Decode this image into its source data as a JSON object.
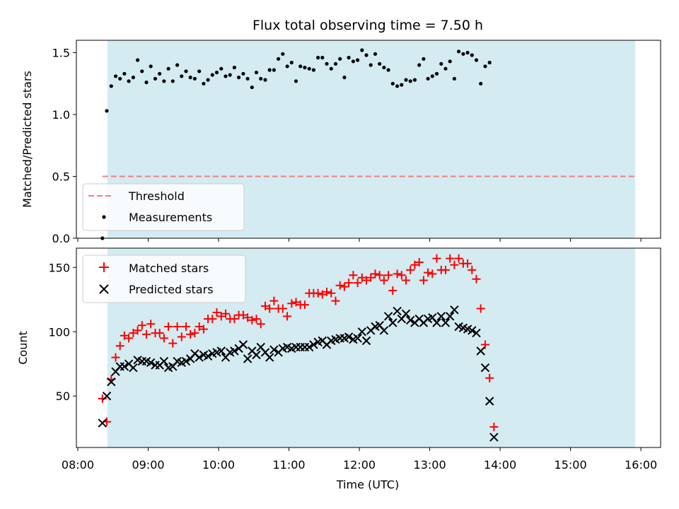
{
  "colors": {
    "background": "#ffffff",
    "shade": "#add8e6",
    "threshold": "#f08080",
    "measurements": "#000000",
    "matched": "#ff0000",
    "predicted": "#000000"
  },
  "chart_data": [
    {
      "type": "scatter",
      "title": "Flux total observing time = 7.50 h",
      "xlabel": "",
      "ylabel": "Matched/Predicted stars",
      "xlim_hours": [
        7.98,
        16.28
      ],
      "ylim": [
        0,
        1.6
      ],
      "yticks": [
        0,
        0.5,
        1.0,
        1.5
      ],
      "ytick_labels": [
        "0.0",
        "0.5",
        "1.0",
        "1.5"
      ],
      "shaded_span_hours": [
        8.42,
        15.92
      ],
      "threshold": {
        "label": "Threshold",
        "value": 0.5,
        "x_range_hours": [
          8.35,
          15.92
        ]
      },
      "legend": {
        "position": "lower-left",
        "entries": [
          "Threshold",
          "Measurements"
        ]
      },
      "series": [
        {
          "name": "Measurements",
          "marker": "dot",
          "x_start_hours": 8.35,
          "x_step_hours": 0.0625,
          "values": [
            0.0,
            1.03,
            1.23,
            1.31,
            1.29,
            1.33,
            1.27,
            1.3,
            1.44,
            1.35,
            1.26,
            1.39,
            1.29,
            1.33,
            1.27,
            1.37,
            1.27,
            1.4,
            1.31,
            1.35,
            1.3,
            1.29,
            1.35,
            1.25,
            1.28,
            1.32,
            1.34,
            1.37,
            1.31,
            1.32,
            1.38,
            1.3,
            1.33,
            1.29,
            1.22,
            1.34,
            1.29,
            1.28,
            1.36,
            1.36,
            1.45,
            1.49,
            1.39,
            1.42,
            1.27,
            1.39,
            1.38,
            1.37,
            1.36,
            1.46,
            1.46,
            1.41,
            1.37,
            1.41,
            1.45,
            1.3,
            1.46,
            1.43,
            1.44,
            1.52,
            1.48,
            1.4,
            1.49,
            1.41,
            1.38,
            1.36,
            1.25,
            1.23,
            1.24,
            1.28,
            1.27,
            1.28,
            1.4,
            1.45,
            1.29,
            1.31,
            1.33,
            1.41,
            1.37,
            1.43,
            1.29,
            1.51,
            1.49,
            1.5,
            1.48,
            1.44,
            1.25,
            1.39,
            1.42
          ]
        }
      ]
    },
    {
      "type": "scatter",
      "title": "",
      "xlabel": "Time (UTC)",
      "ylabel": "Count",
      "xlim_hours": [
        7.98,
        16.28
      ],
      "ylim": [
        10,
        165
      ],
      "yticks": [
        50,
        100,
        150
      ],
      "ytick_labels": [
        "50",
        "100",
        "150"
      ],
      "xticks_hours": [
        8,
        9,
        10,
        11,
        12,
        13,
        14,
        15,
        16
      ],
      "xtick_labels": [
        "08:00",
        "09:00",
        "10:00",
        "11:00",
        "12:00",
        "13:00",
        "14:00",
        "15:00",
        "16:00"
      ],
      "shaded_span_hours": [
        8.42,
        15.92
      ],
      "legend": {
        "position": "top-left",
        "entries": [
          "Matched stars",
          "Predicted stars"
        ]
      },
      "series": [
        {
          "name": "Matched stars",
          "marker": "plus",
          "x_start_hours": 8.35,
          "x_step_hours": 0.0625,
          "values": [
            48,
            30,
            63,
            80,
            89,
            97,
            95,
            99,
            101,
            105,
            98,
            106,
            99,
            99,
            95,
            104,
            91,
            104,
            96,
            104,
            98,
            99,
            104,
            102,
            110,
            110,
            115,
            112,
            114,
            110,
            110,
            113,
            113,
            111,
            109,
            110,
            106,
            120,
            118,
            124,
            118,
            118,
            112,
            122,
            123,
            121,
            121,
            130,
            130,
            130,
            129,
            131,
            130,
            124,
            136,
            135,
            138,
            144,
            138,
            142,
            140,
            142,
            145,
            144,
            140,
            144,
            132,
            145,
            144,
            140,
            148,
            152,
            154,
            140,
            146,
            145,
            157,
            148,
            148,
            157,
            152,
            157,
            153,
            153,
            148,
            141,
            118,
            90,
            64,
            26
          ]
        },
        {
          "name": "Predicted stars",
          "marker": "x",
          "x_start_hours": 8.35,
          "x_step_hours": 0.0625,
          "values": [
            29,
            50,
            61,
            69,
            73,
            73,
            75,
            72,
            78,
            77,
            77,
            76,
            74,
            74,
            77,
            72,
            73,
            77,
            76,
            77,
            79,
            83,
            80,
            82,
            81,
            83,
            84,
            85,
            80,
            84,
            85,
            87,
            90,
            79,
            85,
            82,
            88,
            84,
            80,
            86,
            84,
            87,
            88,
            87,
            88,
            88,
            88,
            88,
            90,
            92,
            93,
            90,
            93,
            94,
            95,
            95,
            96,
            94,
            95,
            100,
            93,
            101,
            104,
            105,
            101,
            112,
            107,
            116,
            110,
            114,
            109,
            107,
            110,
            107,
            110,
            111,
            107,
            112,
            107,
            112,
            117,
            104,
            103,
            102,
            101,
            99,
            85,
            72,
            46,
            18
          ]
        }
      ]
    }
  ]
}
